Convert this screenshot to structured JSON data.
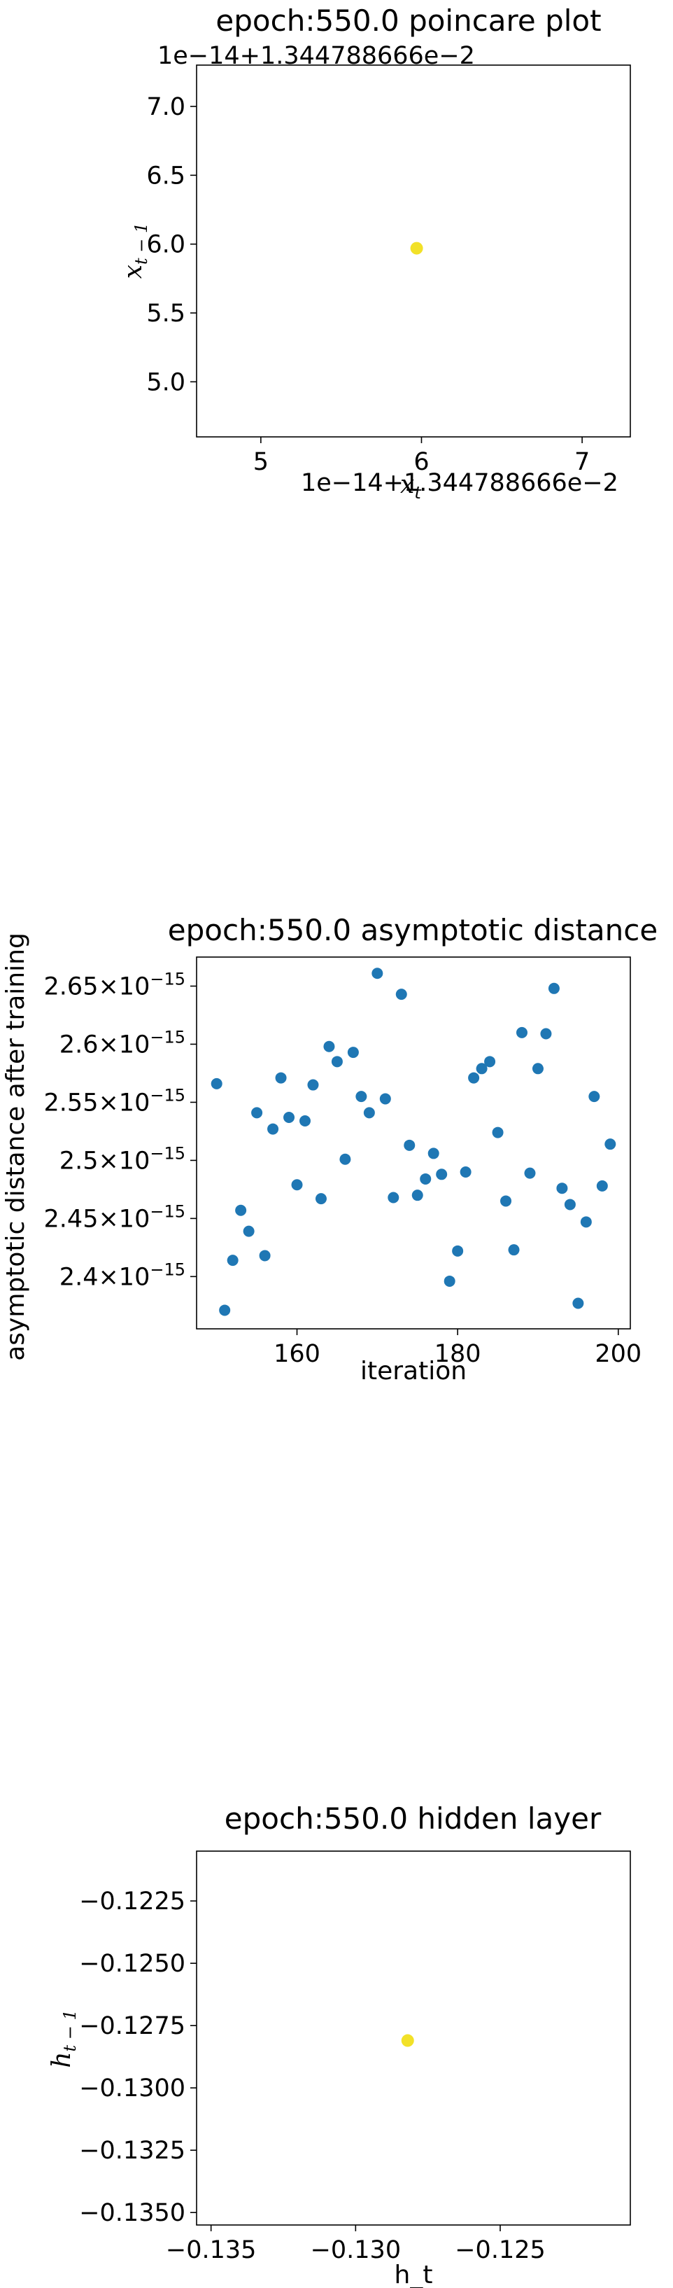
{
  "chart_data": [
    {
      "type": "scatter",
      "title": "epoch:550.0 poincare plot",
      "xlabel": "x_t",
      "ylabel": "x_{t-1}",
      "x_offset_text": "1e−14+1.344788666e−2",
      "y_offset_text": "1e−14+1.344788666e−2",
      "xlim": [
        4.6,
        7.3
      ],
      "ylim": [
        4.6,
        7.3
      ],
      "xticks": [
        5,
        6,
        7
      ],
      "xtick_labels": [
        "5",
        "6",
        "7"
      ],
      "yticks": [
        5.0,
        5.5,
        6.0,
        6.5,
        7.0
      ],
      "ytick_labels": [
        "5.0",
        "5.5",
        "6.0",
        "6.5",
        "7.0"
      ],
      "point_color": "#f2e128",
      "points": [
        {
          "x": 5.97,
          "y": 5.97
        }
      ]
    },
    {
      "type": "scatter",
      "title": "epoch:550.0 asymptotic distance",
      "xlabel": "iteration",
      "ylabel": "asymptotic distance after training",
      "xlim": [
        147.5,
        201.5
      ],
      "ylim": [
        2.355e-15,
        2.675e-15
      ],
      "xticks": [
        160,
        180,
        200
      ],
      "xtick_labels": [
        "160",
        "180",
        "200"
      ],
      "yticks": [
        2.4e-15,
        2.45e-15,
        2.5e-15,
        2.55e-15,
        2.6e-15,
        2.65e-15
      ],
      "ytick_labels": [
        {
          "mantissa": "2.4",
          "times": "×",
          "base": "10",
          "exp": "−15"
        },
        {
          "mantissa": "2.45",
          "times": "×",
          "base": "10",
          "exp": "−15"
        },
        {
          "mantissa": "2.5",
          "times": "×",
          "base": "10",
          "exp": "−15"
        },
        {
          "mantissa": "2.55",
          "times": "×",
          "base": "10",
          "exp": "−15"
        },
        {
          "mantissa": "2.6",
          "times": "×",
          "base": "10",
          "exp": "−15"
        },
        {
          "mantissa": "2.65",
          "times": "×",
          "base": "10",
          "exp": "−15"
        }
      ],
      "point_color": "#1f77b4",
      "x": [
        150,
        151,
        152,
        153,
        154,
        155,
        156,
        157,
        158,
        159,
        160,
        161,
        162,
        163,
        164,
        165,
        166,
        167,
        168,
        169,
        170,
        171,
        172,
        173,
        174,
        175,
        176,
        177,
        178,
        179,
        180,
        181,
        182,
        183,
        184,
        185,
        186,
        187,
        188,
        189,
        190,
        191,
        192,
        193,
        194,
        195,
        196,
        197,
        198,
        199
      ],
      "y": [
        2.566,
        2.371,
        2.414,
        2.457,
        2.439,
        2.541,
        2.418,
        2.527,
        2.571,
        2.537,
        2.479,
        2.534,
        2.565,
        2.467,
        2.598,
        2.585,
        2.501,
        2.593,
        2.555,
        2.541,
        2.661,
        2.553,
        2.468,
        2.643,
        2.513,
        2.47,
        2.484,
        2.506,
        2.488,
        2.396,
        2.422,
        2.49,
        2.571,
        2.579,
        2.585,
        2.524,
        2.465,
        2.423,
        2.61,
        2.489,
        2.579,
        2.609,
        2.648,
        2.476,
        2.462,
        2.377,
        2.447,
        2.555,
        2.478,
        2.514
      ]
    },
    {
      "type": "scatter",
      "title": "epoch:550.0 hidden layer",
      "xlabel": "h_t",
      "ylabel": "h_{t-1}",
      "xlim": [
        -0.1355,
        -0.1205
      ],
      "ylim": [
        -0.1355,
        -0.1205
      ],
      "xticks": [
        -0.135,
        -0.13,
        -0.125
      ],
      "xtick_labels": [
        "−0.135",
        "−0.130",
        "−0.125"
      ],
      "yticks": [
        -0.135,
        -0.1325,
        -0.13,
        -0.1275,
        -0.125,
        -0.1225
      ],
      "ytick_labels": [
        "−0.1350",
        "−0.1325",
        "−0.1300",
        "−0.1275",
        "−0.1250",
        "−0.1225"
      ],
      "point_color": "#f2e128",
      "points": [
        {
          "x": -0.1282,
          "y": -0.1281
        }
      ]
    }
  ]
}
